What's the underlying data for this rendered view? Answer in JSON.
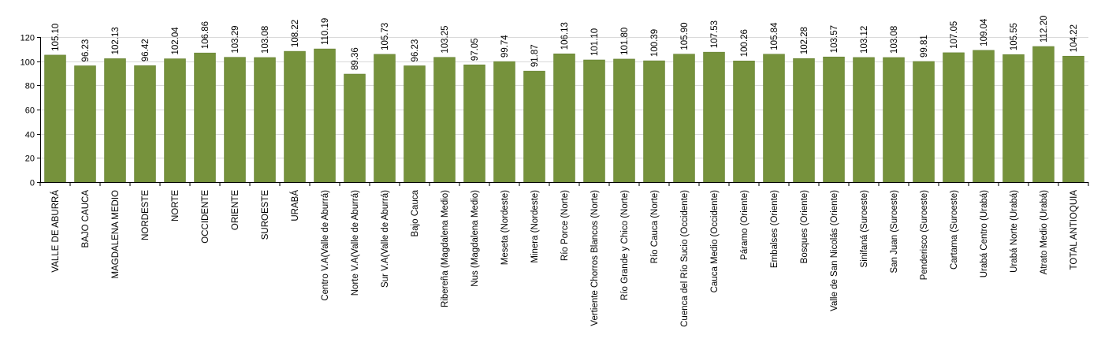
{
  "colors": {
    "bar": "#76923c",
    "bar_edge": "#5e7a2c",
    "grid": "#d9d9d9",
    "axis": "#000000"
  },
  "chart_data": {
    "type": "bar",
    "categories": [
      "VALLE DE ABURRÁ",
      "BAJO CAUCA",
      "MAGDALENA MEDIO",
      "NORDESTE",
      "NORTE",
      "OCCIDENTE",
      "ORIENTE",
      "SUROESTE",
      "URABÁ",
      "Centro V.A(Valle de Aburrá)",
      "Norte V.A(Valle de Aburrá)",
      "Sur V.A(Valle de Aburrá)",
      "Bajo Cauca",
      "Ribereña  (Magdalena Medio)",
      "Nus  (Magdalena Medio)",
      "Meseta  (Nordeste)",
      "Minera  (Nordeste)",
      "Río Porce   (Norte)",
      "Vertiente Chorros Blancos  (Norte)",
      "Río Grande y Chico  (Norte)",
      "Río Cauca  (Norte)",
      "Cuenca del Río Sucio  (Occidente)",
      "Cauca Medio  (Occidente)",
      "Páramo  (Oriente)",
      "Embalses  (Oriente)",
      "Bosques  (Oriente)",
      "Valle de San Nicolás  (Oriente)",
      "Sinifaná  (Suroeste)",
      "San Juan  (Suroeste)",
      "Penderisco  (Suroeste)",
      "Cartama  (Suroeste)",
      "Urabá Centro  (Urabá)",
      "Urabá Norte  (Urabá)",
      "Atrato Medio  (Urabá)",
      "TOTAL ANTIOQUIA"
    ],
    "values": [
      105.1,
      96.23,
      102.13,
      96.42,
      102.04,
      106.86,
      103.29,
      103.08,
      108.22,
      110.19,
      89.36,
      105.73,
      96.23,
      103.25,
      97.05,
      99.74,
      91.87,
      106.13,
      101.1,
      101.8,
      100.39,
      105.9,
      107.53,
      100.26,
      105.84,
      102.28,
      103.57,
      103.12,
      103.08,
      99.81,
      107.05,
      109.04,
      105.55,
      112.2,
      104.22
    ],
    "value_labels": [
      "105.10",
      "96.23",
      "102.13",
      "96.42",
      "102.04",
      "106.86",
      "103.29",
      "103.08",
      "108.22",
      "110.19",
      "89.36",
      "105.73",
      "96.23",
      "103.25",
      "97.05",
      "99.74",
      "91.87",
      "106.13",
      "101.10",
      "101.80",
      "100.39",
      "105.90",
      "107.53",
      "100.26",
      "105.84",
      "102.28",
      "103.57",
      "103.12",
      "103.08",
      "99.81",
      "107.05",
      "109.04",
      "105.55",
      "112.20",
      "104.22"
    ],
    "yticks": [
      "0",
      "20",
      "40",
      "60",
      "80",
      "100",
      "120"
    ],
    "ylim": [
      0,
      120
    ],
    "grid": true,
    "title": "",
    "xlabel": "",
    "ylabel": ""
  }
}
